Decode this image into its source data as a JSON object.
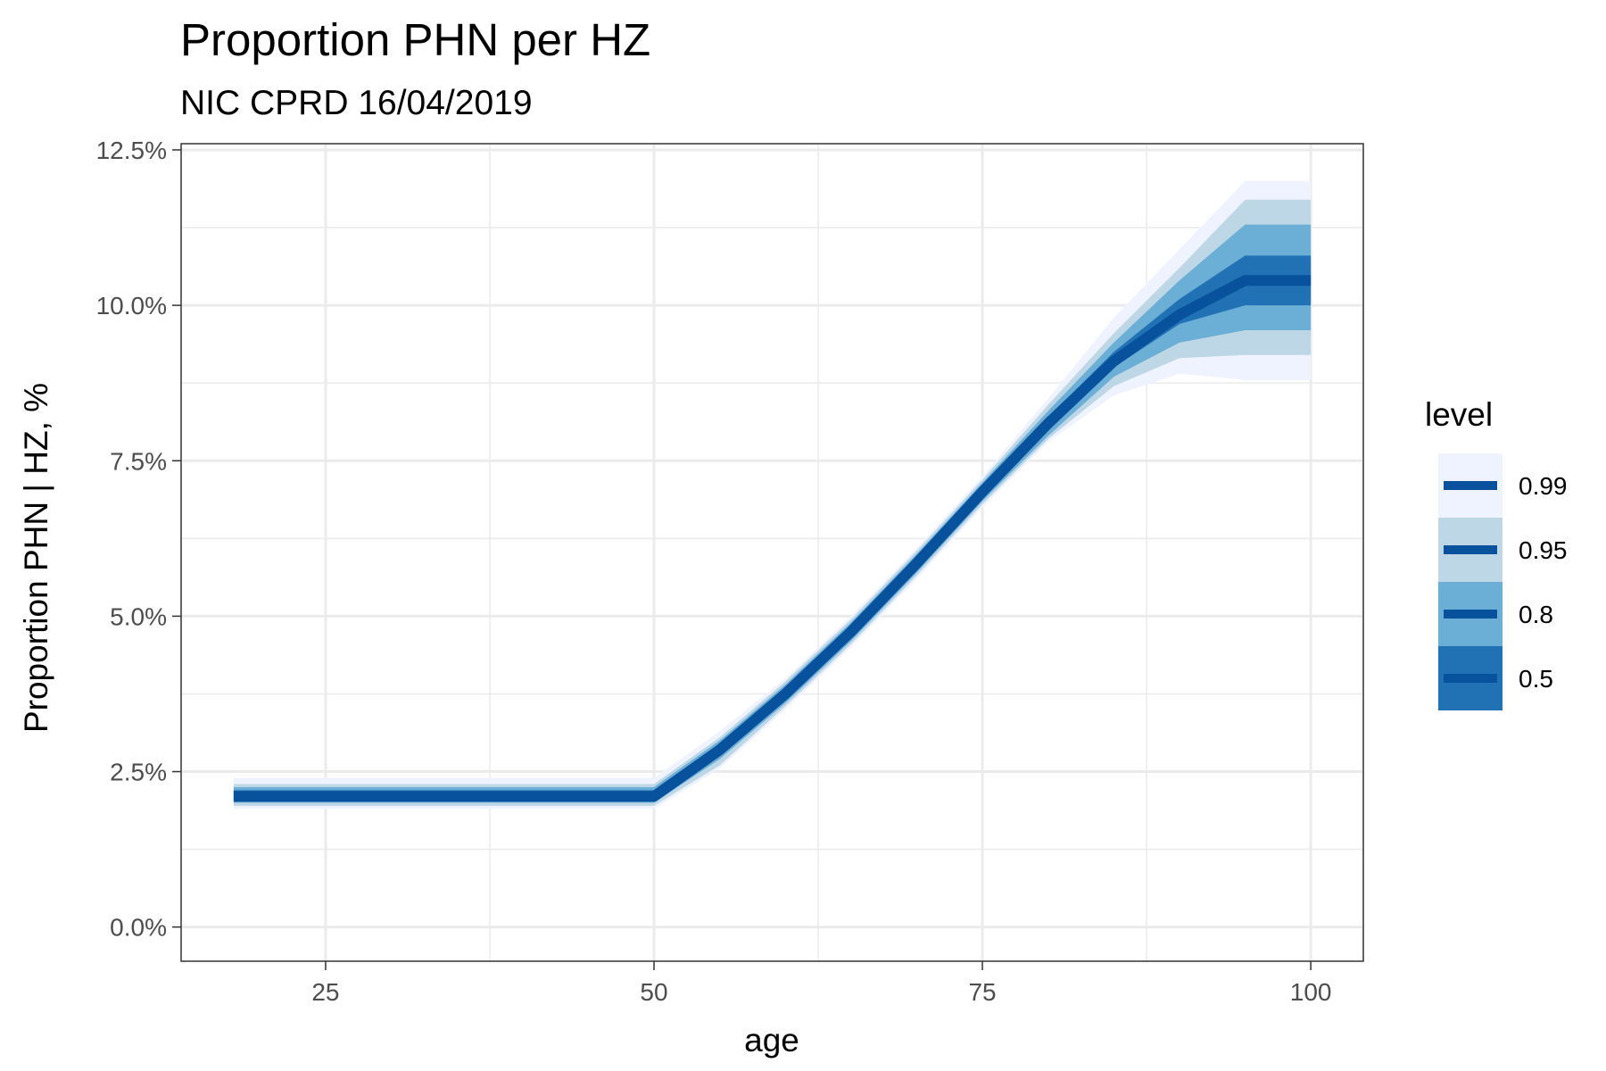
{
  "chart_data": {
    "type": "area",
    "title": "Proportion PHN per HZ",
    "subtitle": "NIC CPRD 16/04/2019",
    "xlabel": "age",
    "ylabel": "Proportion PHN | HZ, %",
    "xlim": [
      14,
      104
    ],
    "ylim": [
      -0.55,
      12.6
    ],
    "x_ticks": [
      25,
      50,
      75,
      100
    ],
    "x_tick_labels": [
      "25",
      "50",
      "75",
      "100"
    ],
    "y_ticks": [
      0,
      2.5,
      5,
      7.5,
      10,
      12.5
    ],
    "y_tick_labels": [
      "0.0%",
      "2.5%",
      "5.0%",
      "7.5%",
      "10.0%",
      "12.5%"
    ],
    "grid": true,
    "legend": {
      "title": "level",
      "position": "right",
      "entries": [
        "0.99",
        "0.95",
        "0.8",
        "0.5"
      ]
    },
    "x": [
      18,
      50,
      55,
      60,
      65,
      70,
      75,
      80,
      85,
      90,
      95,
      100
    ],
    "median": [
      2.1,
      2.1,
      2.85,
      3.75,
      4.75,
      5.85,
      7.0,
      8.1,
      9.1,
      9.85,
      10.4,
      10.4
    ],
    "bands": [
      {
        "level": "0.99",
        "color": "#eff3ff",
        "lower": [
          1.9,
          1.9,
          2.55,
          3.5,
          4.5,
          5.6,
          6.75,
          7.8,
          8.55,
          8.9,
          8.8,
          8.8
        ],
        "upper": [
          2.4,
          2.4,
          3.15,
          4.0,
          5.0,
          6.1,
          7.25,
          8.5,
          9.8,
          10.9,
          12.0,
          12.0
        ]
      },
      {
        "level": "0.95",
        "color": "#bdd7e7",
        "lower": [
          1.95,
          1.95,
          2.6,
          3.55,
          4.55,
          5.65,
          6.8,
          7.85,
          8.7,
          9.15,
          9.2,
          9.2
        ],
        "upper": [
          2.3,
          2.3,
          3.05,
          3.95,
          4.95,
          6.05,
          7.2,
          8.4,
          9.55,
          10.6,
          11.7,
          11.7
        ]
      },
      {
        "level": "0.8",
        "color": "#6baed6",
        "lower": [
          2.0,
          2.0,
          2.7,
          3.6,
          4.6,
          5.7,
          6.85,
          7.9,
          8.85,
          9.4,
          9.6,
          9.6
        ],
        "upper": [
          2.25,
          2.25,
          3.0,
          3.9,
          4.9,
          6.0,
          7.15,
          8.3,
          9.4,
          10.4,
          11.3,
          11.3
        ]
      },
      {
        "level": "0.5",
        "color": "#2171b5",
        "lower": [
          2.05,
          2.05,
          2.8,
          3.7,
          4.7,
          5.8,
          6.95,
          8.0,
          9.0,
          9.7,
          10.0,
          10.0
        ],
        "upper": [
          2.2,
          2.2,
          2.95,
          3.85,
          4.85,
          5.95,
          7.1,
          8.2,
          9.25,
          10.1,
          10.8,
          10.8
        ]
      }
    ],
    "median_color": "#08519c"
  }
}
